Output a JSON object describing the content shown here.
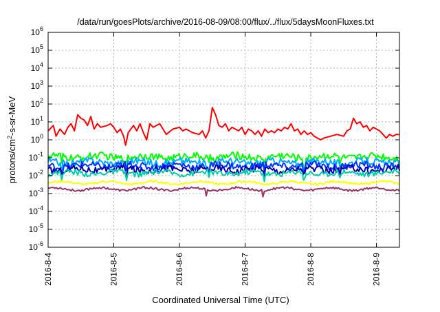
{
  "chart_data": {
    "type": "line",
    "title": "/data/run/goesPlots/archive/2016-08-09/08:00/flux/../flux/5daysMoonFluxes.txt",
    "xlabel": "Coordinated Universal Time (UTC)",
    "ylabel": {
      "pre": "protons/cm",
      "sup": "2",
      "post": "-s-sr-MeV"
    },
    "y_scale": "log",
    "ylim_exp": [
      -6,
      6
    ],
    "y_tick_exponents": [
      -6,
      -5,
      -4,
      -3,
      -2,
      -1,
      0,
      1,
      2,
      3,
      4,
      5,
      6
    ],
    "y_tick_base": "10",
    "x_range_days": [
      0,
      5.35
    ],
    "x_ticks": [
      "2016-8-4",
      "2016-8-5",
      "2016-8-6",
      "2016-8-7",
      "2016-8-8",
      "2016-8-9"
    ],
    "grid": true,
    "series": [
      {
        "color": "#ff0000",
        "points": [
          [
            0,
            0.5
          ],
          [
            0.08,
            0.8
          ],
          [
            0.12,
            0.2
          ],
          [
            0.18,
            0.6
          ],
          [
            0.25,
            0.3
          ],
          [
            0.3,
            0.7
          ],
          [
            0.35,
            0.9
          ],
          [
            0.4,
            0.5
          ],
          [
            0.45,
            1.4
          ],
          [
            0.5,
            1.2
          ],
          [
            0.55,
            1.1
          ],
          [
            0.6,
            0.8
          ],
          [
            0.65,
            1.3
          ],
          [
            0.7,
            0.6
          ],
          [
            0.75,
            0.9
          ],
          [
            0.8,
            0.7
          ],
          [
            0.9,
            0.8
          ],
          [
            0.95,
            0.9
          ],
          [
            1.0,
            0.7
          ],
          [
            1.05,
            0.4
          ],
          [
            1.1,
            0.6
          ],
          [
            1.15,
            0.2
          ],
          [
            1.18,
            -0.3
          ],
          [
            1.22,
            0.4
          ],
          [
            1.3,
            0.8
          ],
          [
            1.35,
            0.5
          ],
          [
            1.4,
            0.9
          ],
          [
            1.45,
            0.4
          ],
          [
            1.5,
            0.0
          ],
          [
            1.55,
            0.9
          ],
          [
            1.6,
            0.7
          ],
          [
            1.7,
            0.9
          ],
          [
            1.75,
            0.6
          ],
          [
            1.8,
            0.3
          ],
          [
            1.9,
            0.6
          ],
          [
            2.0,
            0.7
          ],
          [
            2.05,
            0.5
          ],
          [
            2.1,
            0.6
          ],
          [
            2.2,
            0.4
          ],
          [
            2.3,
            0.3
          ],
          [
            2.35,
            0.5
          ],
          [
            2.4,
            0.1
          ],
          [
            2.45,
            0.5
          ],
          [
            2.5,
            1.8
          ],
          [
            2.55,
            1.4
          ],
          [
            2.6,
            0.8
          ],
          [
            2.65,
            0.7
          ],
          [
            2.7,
            0.9
          ],
          [
            2.75,
            0.5
          ],
          [
            2.8,
            0.7
          ],
          [
            2.85,
            0.6
          ],
          [
            2.9,
            0.5
          ],
          [
            2.95,
            0.7
          ],
          [
            3.0,
            0.3
          ],
          [
            3.05,
            0.6
          ],
          [
            3.1,
            0.5
          ],
          [
            3.15,
            0.3
          ],
          [
            3.2,
            0.5
          ],
          [
            3.25,
            0.2
          ],
          [
            3.3,
            0.6
          ],
          [
            3.35,
            0.4
          ],
          [
            3.4,
            0.5
          ],
          [
            3.45,
            0.4
          ],
          [
            3.5,
            0.6
          ],
          [
            3.55,
            0.5
          ],
          [
            3.6,
            0.7
          ],
          [
            3.65,
            0.6
          ],
          [
            3.7,
            0.9
          ],
          [
            3.75,
            0.5
          ],
          [
            3.8,
            0.6
          ],
          [
            3.85,
            0.3
          ],
          [
            3.9,
            0.5
          ],
          [
            3.95,
            0.3
          ],
          [
            4.0,
            0.4
          ],
          [
            4.05,
            0.2
          ],
          [
            4.1,
            0.1
          ],
          [
            4.15,
            0.0
          ],
          [
            4.2,
            0.1
          ],
          [
            4.3,
            0.2
          ],
          [
            4.4,
            0.3
          ],
          [
            4.5,
            0.2
          ],
          [
            4.55,
            0.5
          ],
          [
            4.6,
            0.6
          ],
          [
            4.65,
            1.2
          ],
          [
            4.7,
            0.9
          ],
          [
            4.75,
            1.0
          ],
          [
            4.8,
            0.7
          ],
          [
            4.85,
            0.8
          ],
          [
            4.9,
            0.5
          ],
          [
            4.95,
            0.7
          ],
          [
            5.0,
            0.6
          ],
          [
            5.05,
            0.5
          ],
          [
            5.1,
            0.3
          ],
          [
            5.15,
            0.1
          ],
          [
            5.2,
            0.3
          ],
          [
            5.25,
            0.2
          ],
          [
            5.3,
            0.3
          ],
          [
            5.35,
            0.3
          ]
        ]
      },
      {
        "color": "#00ff00",
        "base": -0.95,
        "amp": 0.2,
        "dips": [
          0.2,
          1.2,
          2.45,
          3.3,
          3.9,
          4.45
        ]
      },
      {
        "color": "#00aaff",
        "base": -1.25,
        "amp": 0.2,
        "dips": [
          0.2,
          1.2,
          2.45,
          3.3,
          3.9,
          4.45
        ]
      },
      {
        "color": "#0033ff",
        "base": -1.45,
        "amp": 0.2,
        "dips": [
          0.2,
          1.2,
          2.45,
          3.3,
          3.9,
          4.45
        ]
      },
      {
        "color": "#0000aa",
        "base": -1.65,
        "amp": 0.2,
        "dips": [
          0.2,
          1.2,
          2.45,
          3.3,
          3.9,
          4.45
        ]
      },
      {
        "color": "#00ccaa",
        "base": -1.85,
        "amp": 0.15,
        "dips": [
          0.2,
          1.2,
          2.45,
          3.3,
          3.9,
          4.45
        ]
      },
      {
        "color": "#ffff00",
        "base": -2.4,
        "amp": 0.06,
        "dips": []
      },
      {
        "color": "#993366",
        "base": -2.75,
        "amp": 0.06,
        "dips": [
          2.4,
          3.28
        ]
      }
    ]
  }
}
